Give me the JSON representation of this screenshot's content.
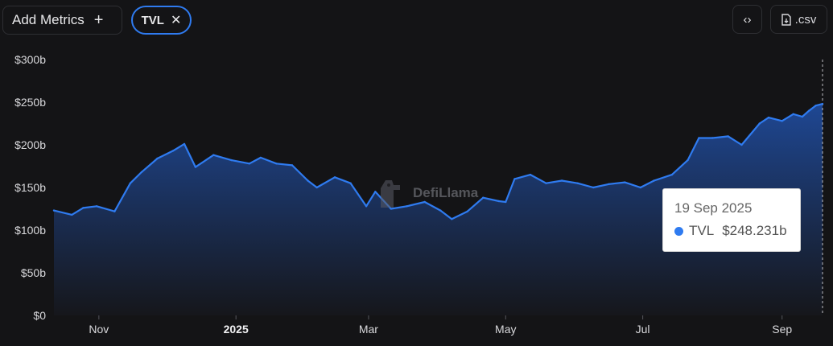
{
  "toolbar": {
    "add_metrics_label": "Add Metrics",
    "add_icon": "plus-icon",
    "metric_chip_label": "TVL",
    "remove_icon": "close-icon",
    "embed_icon": "code-icon",
    "csv_label": ".csv",
    "csv_icon": "file-download-icon"
  },
  "watermark": {
    "text": "DefiLlama"
  },
  "tooltip": {
    "date": "19 Sep 2025",
    "series": "TVL",
    "value": "$248.231b"
  },
  "colors": {
    "line": "#2f7bf0",
    "background": "#141416",
    "area_top": "#1f4a9a",
    "area_bottom": "#16171c"
  },
  "chart_data": {
    "type": "area",
    "title": "",
    "xlabel": "",
    "ylabel": "",
    "ylim": [
      0,
      300
    ],
    "y_unit": "billion USD",
    "y_ticks": [
      "$0",
      "$50b",
      "$100b",
      "$150b",
      "$200b",
      "$250b",
      "$300b"
    ],
    "y_tick_values": [
      0,
      50,
      100,
      150,
      200,
      250,
      300
    ],
    "x_range": [
      "2024-10-12",
      "2025-09-19"
    ],
    "x_ticks": [
      {
        "label": "Nov",
        "date": "2024-11-01",
        "bold": false
      },
      {
        "label": "2025",
        "date": "2025-01-01",
        "bold": true
      },
      {
        "label": "Mar",
        "date": "2025-03-01",
        "bold": false
      },
      {
        "label": "May",
        "date": "2025-05-01",
        "bold": false
      },
      {
        "label": "Jul",
        "date": "2025-07-01",
        "bold": false
      },
      {
        "label": "Sep",
        "date": "2025-09-01",
        "bold": false
      }
    ],
    "grid": false,
    "series": [
      {
        "name": "TVL",
        "x": [
          "2024-10-12",
          "2024-10-20",
          "2024-10-25",
          "2024-10-31",
          "2024-11-08",
          "2024-11-15",
          "2024-11-20",
          "2024-11-27",
          "2024-12-04",
          "2024-12-09",
          "2024-12-14",
          "2024-12-22",
          "2024-12-30",
          "2025-01-07",
          "2025-01-12",
          "2025-01-19",
          "2025-01-26",
          "2025-02-02",
          "2025-02-06",
          "2025-02-14",
          "2025-02-21",
          "2025-02-28",
          "2025-03-04",
          "2025-03-11",
          "2025-03-18",
          "2025-03-26",
          "2025-04-02",
          "2025-04-07",
          "2025-04-14",
          "2025-04-21",
          "2025-04-28",
          "2025-05-01",
          "2025-05-05",
          "2025-05-12",
          "2025-05-19",
          "2025-05-26",
          "2025-06-02",
          "2025-06-09",
          "2025-06-16",
          "2025-06-23",
          "2025-06-30",
          "2025-07-06",
          "2025-07-14",
          "2025-07-21",
          "2025-07-26",
          "2025-08-01",
          "2025-08-08",
          "2025-08-14",
          "2025-08-22",
          "2025-08-26",
          "2025-09-01",
          "2025-09-06",
          "2025-09-10",
          "2025-09-13",
          "2025-09-16",
          "2025-09-19"
        ],
        "values": [
          123,
          118,
          126,
          128,
          122,
          155,
          168,
          184,
          193,
          201,
          174,
          188,
          182,
          178,
          185,
          178,
          176,
          158,
          150,
          162,
          155,
          128,
          145,
          125,
          128,
          133,
          123,
          113,
          122,
          138,
          134,
          133,
          160,
          165,
          155,
          158,
          155,
          150,
          154,
          156,
          150,
          158,
          165,
          182,
          208,
          208,
          210,
          200,
          225,
          232,
          228,
          236,
          233,
          240,
          246,
          248
        ]
      }
    ]
  }
}
